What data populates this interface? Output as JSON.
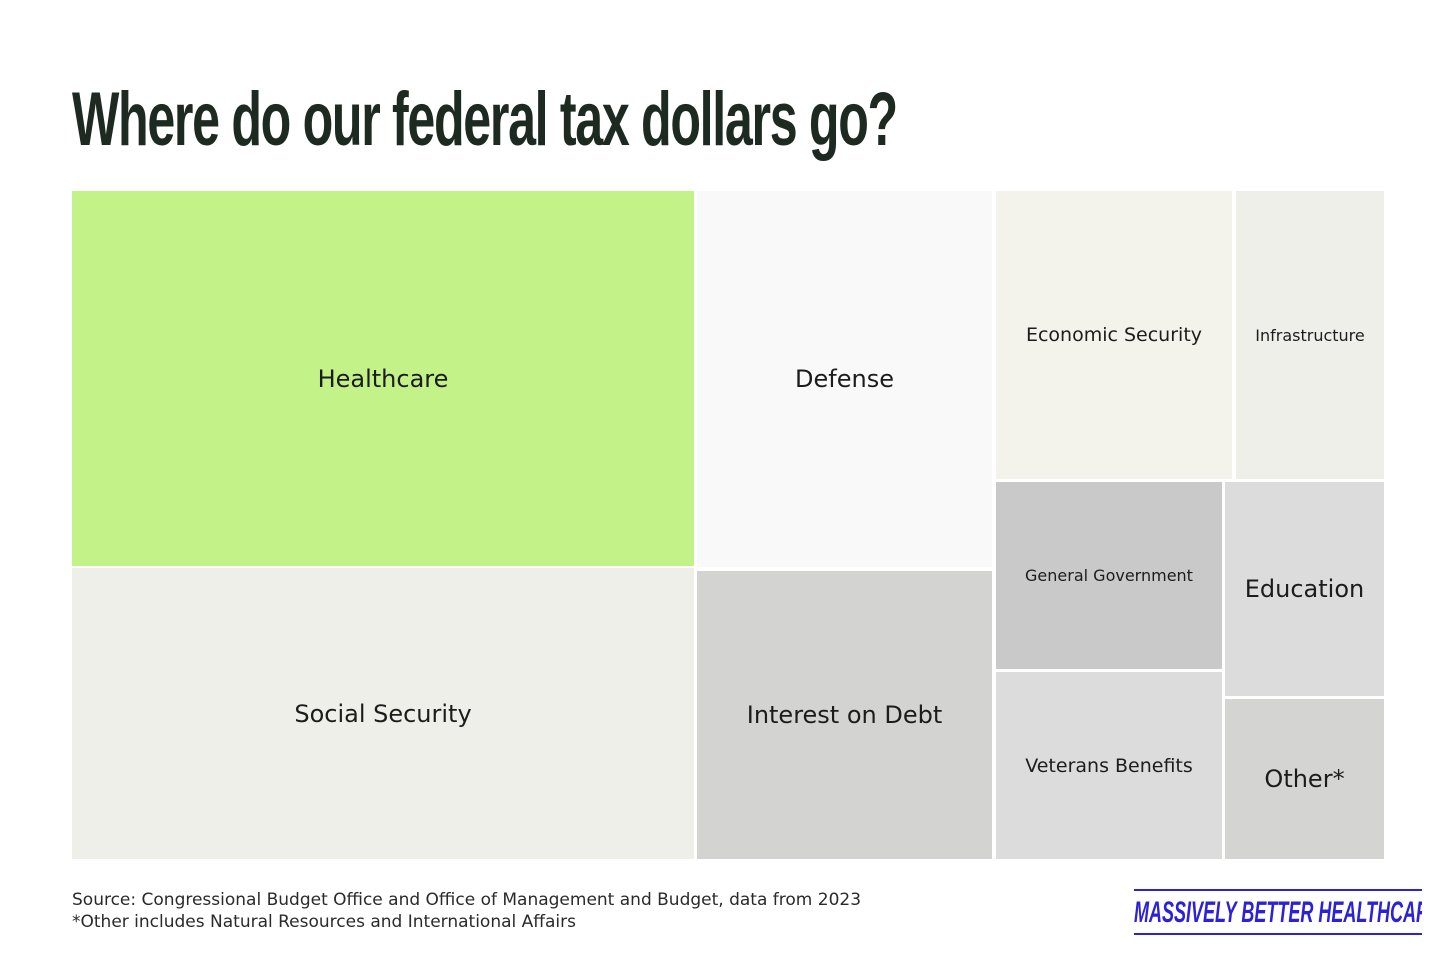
{
  "chart_data": {
    "type": "treemap",
    "title": "Where do our federal tax dollars go?",
    "categories": [
      "Healthcare",
      "Social Security",
      "Defense",
      "Interest on Debt",
      "Economic Security",
      "Infrastructure",
      "General Government",
      "Education",
      "Veterans Benefits",
      "Other*"
    ],
    "colors": {
      "Healthcare": "#c2f288",
      "Social Security": "#efefe9",
      "Defense": "#f9f9f9",
      "Interest on Debt": "#d3d4d2",
      "Economic Security": "#f3f3eb",
      "Infrastructure": "#efefea",
      "General Government": "#c9c9c9",
      "Education": "#dcdcdc",
      "Veterans Benefits": "#dcdcdc",
      "Other*": "#d4d5d3"
    }
  },
  "footer": {
    "source": "Source: Congressional Budget Office and Office of Management and Budget, data from 2023",
    "note": "*Other includes Natural Resources and International Affairs"
  },
  "brand": {
    "name": "MASSIVELY BETTER HEALTHCARE",
    "color": "#2b21d6"
  }
}
